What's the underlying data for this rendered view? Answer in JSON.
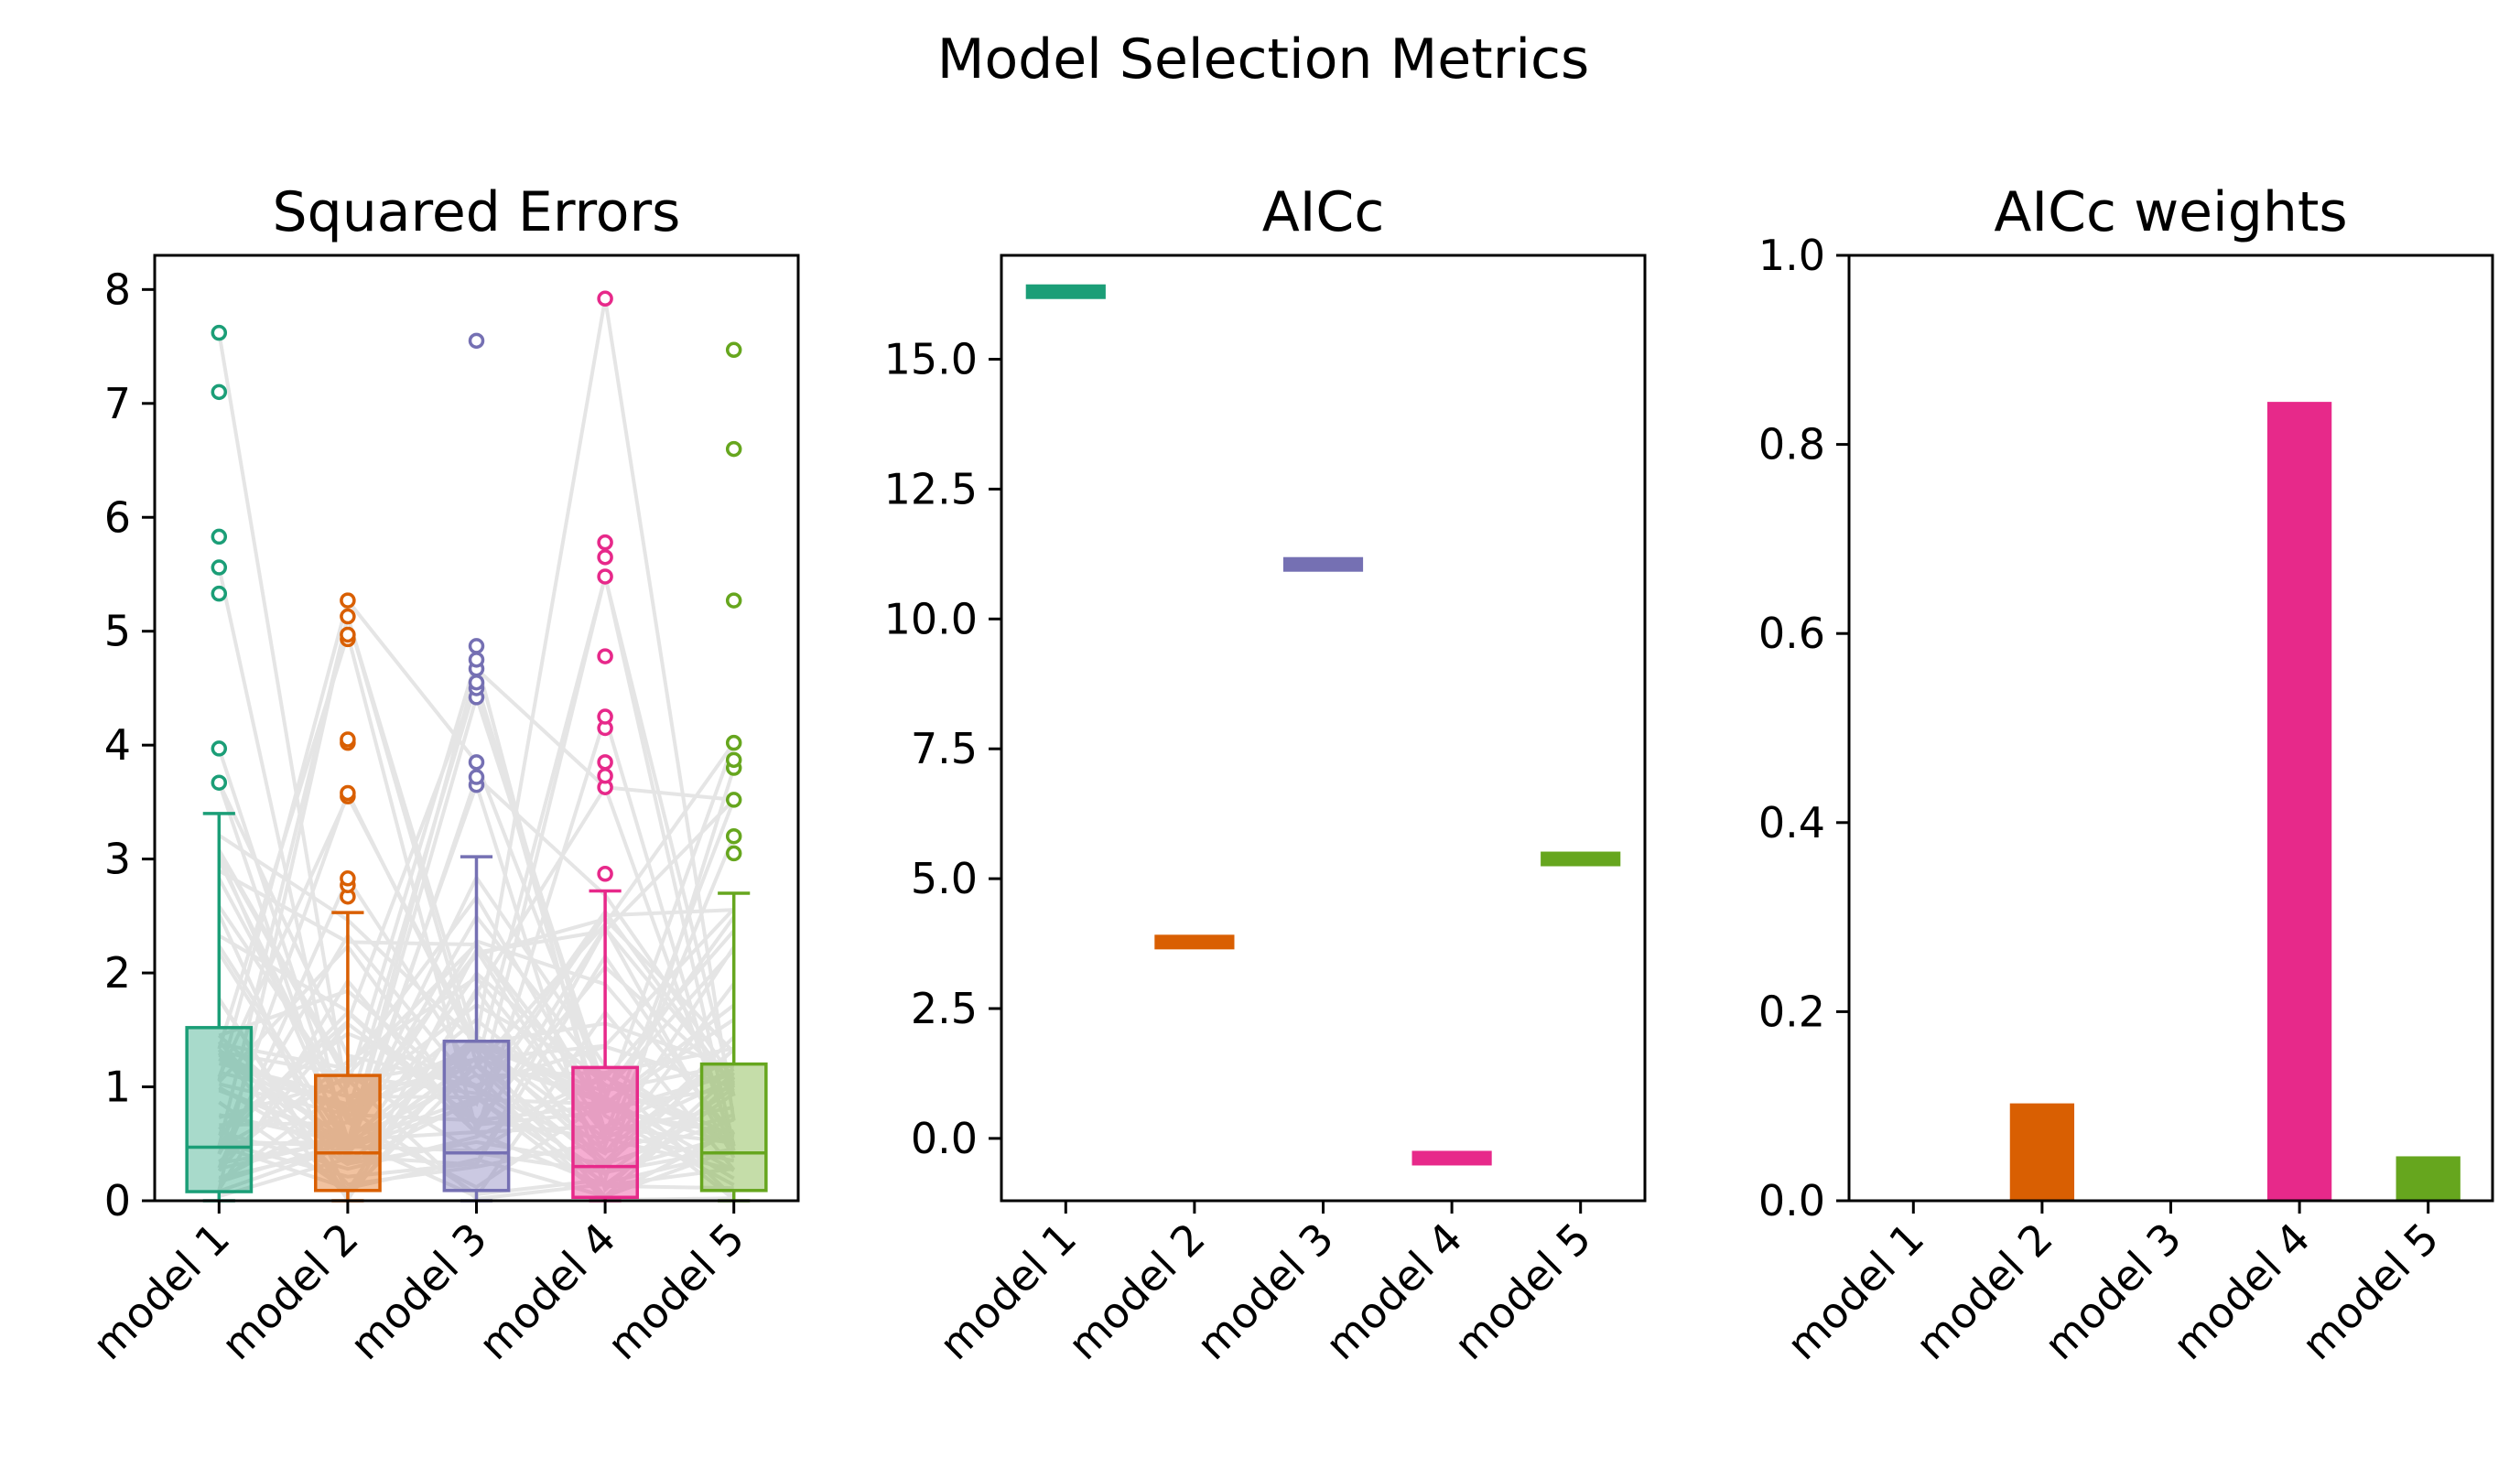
{
  "suptitle": "Model Selection Metrics",
  "colors": {
    "model 1": "#1b9e77",
    "model 2": "#d95f02",
    "model 3": "#7570b3",
    "model 4": "#e7298a",
    "model 5": "#66a61e",
    "pairing_lines": "#e5e5e5"
  },
  "chart_data": [
    {
      "type": "box",
      "title": "Squared Errors",
      "categories": [
        "model 1",
        "model 2",
        "model 3",
        "model 4",
        "model 5"
      ],
      "ylim": [
        0,
        8.3
      ],
      "yticks": [
        0,
        1,
        2,
        3,
        4,
        5,
        6,
        7,
        8
      ],
      "paired_lines": true,
      "boxes": [
        {
          "name": "model 1",
          "q1": 0.08,
          "median": 0.47,
          "q3": 1.52,
          "whisker_low": 0.0,
          "whisker_high": 3.4,
          "outliers": [
            3.67,
            3.97,
            5.33,
            5.56,
            5.83,
            7.1,
            7.62
          ]
        },
        {
          "name": "model 2",
          "q1": 0.09,
          "median": 0.42,
          "q3": 1.1,
          "whisker_low": 0.0,
          "whisker_high": 2.53,
          "outliers": [
            2.67,
            2.77,
            2.83,
            3.55,
            3.58,
            4.02,
            4.05,
            4.93,
            4.97,
            5.13,
            5.27
          ]
        },
        {
          "name": "model 3",
          "q1": 0.09,
          "median": 0.42,
          "q3": 1.4,
          "whisker_low": 0.0,
          "whisker_high": 3.02,
          "outliers": [
            3.65,
            3.72,
            3.85,
            4.42,
            4.5,
            4.55,
            4.67,
            4.75,
            4.87,
            7.55
          ]
        },
        {
          "name": "model 4",
          "q1": 0.03,
          "median": 0.3,
          "q3": 1.17,
          "whisker_low": 0.0,
          "whisker_high": 2.72,
          "outliers": [
            2.87,
            3.63,
            3.73,
            3.85,
            4.15,
            4.25,
            4.78,
            5.48,
            5.65,
            5.78,
            7.92
          ]
        },
        {
          "name": "model 5",
          "q1": 0.09,
          "median": 0.42,
          "q3": 1.2,
          "whisker_low": 0.0,
          "whisker_high": 2.7,
          "outliers": [
            3.05,
            3.2,
            3.52,
            3.8,
            3.87,
            4.02,
            5.27,
            6.6,
            7.47
          ]
        }
      ]
    },
    {
      "type": "scatter",
      "marker": "horizontal-line",
      "title": "AICc",
      "categories": [
        "model 1",
        "model 2",
        "model 3",
        "model 4",
        "model 5"
      ],
      "values": [
        16.3,
        3.78,
        11.05,
        -0.38,
        5.38
      ],
      "ylim": [
        -1.2,
        17.0
      ],
      "yticks": [
        0.0,
        2.5,
        5.0,
        7.5,
        10.0,
        12.5,
        15.0
      ],
      "ytick_labels": [
        "0.0",
        "2.5",
        "5.0",
        "7.5",
        "10.0",
        "12.5",
        "15.0"
      ]
    },
    {
      "type": "bar",
      "title": "AICc weights",
      "categories": [
        "model 1",
        "model 2",
        "model 3",
        "model 4",
        "model 5"
      ],
      "values": [
        0.0,
        0.103,
        0.0,
        0.845,
        0.047
      ],
      "ylim": [
        0,
        1.0
      ],
      "yticks": [
        0.0,
        0.2,
        0.4,
        0.6,
        0.8,
        1.0
      ],
      "ytick_labels": [
        "0.0",
        "0.2",
        "0.4",
        "0.6",
        "0.8",
        "1.0"
      ]
    }
  ]
}
